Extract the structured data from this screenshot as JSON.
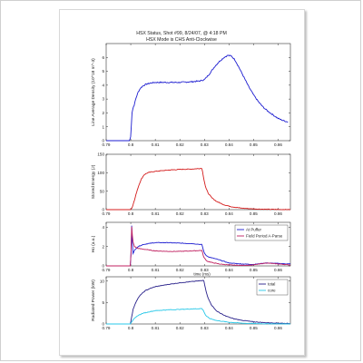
{
  "figure": {
    "title_line1": "HSX Status, Shot #99, 8/24/07, @ 4:18 PM",
    "title_line2": "HSX Mode is CHS Anti-Clockwise"
  },
  "colors": {
    "density": "#1c1cd0",
    "energy": "#d41c1c",
    "puffer": "#1c1cd0",
    "field": "#c02060",
    "total": "#28208a",
    "core": "#28c8e8"
  },
  "chart_data": [
    {
      "type": "line",
      "title": "",
      "xlabel": "",
      "ylabel": "Line Average Density (10^18 m^-3)",
      "xlim": [
        0.79,
        0.865
      ],
      "ylim": [
        0,
        7
      ],
      "x_ticks": [
        "0.79",
        "0.8",
        "0.81",
        "0.82",
        "0.83",
        "0.84",
        "0.85",
        "0.86"
      ],
      "y_ticks": [
        "0",
        "1",
        "2",
        "3",
        "4",
        "5",
        "6"
      ],
      "series": [
        {
          "color_key": "density",
          "x": [
            0.79,
            0.7995,
            0.8,
            0.8005,
            0.801,
            0.8015,
            0.802,
            0.803,
            0.804,
            0.805,
            0.806,
            0.807,
            0.808,
            0.81,
            0.815,
            0.82,
            0.825,
            0.828,
            0.83,
            0.832,
            0.834,
            0.836,
            0.838,
            0.8395,
            0.841,
            0.8425,
            0.844,
            0.846,
            0.848,
            0.85,
            0.852,
            0.854,
            0.856,
            0.858,
            0.86,
            0.862,
            0.864
          ],
          "y": [
            0,
            0,
            0.3,
            2.0,
            2.4,
            2.6,
            3.0,
            3.5,
            3.8,
            3.95,
            4.05,
            4.1,
            4.15,
            4.2,
            4.2,
            4.2,
            4.25,
            4.3,
            4.4,
            4.8,
            5.3,
            5.7,
            6.0,
            6.15,
            6.1,
            5.8,
            5.3,
            4.6,
            3.9,
            3.3,
            2.8,
            2.4,
            2.1,
            1.85,
            1.6,
            1.45,
            1.35
          ]
        }
      ]
    },
    {
      "type": "line",
      "title": "",
      "xlabel": "",
      "ylabel": "Stored Energy (J)",
      "xlim": [
        0.79,
        0.865
      ],
      "ylim": [
        0,
        150
      ],
      "x_ticks": [
        "0.79",
        "0.8",
        "0.81",
        "0.82",
        "0.83",
        "0.84",
        "0.85",
        "0.86"
      ],
      "y_ticks": [
        "0",
        "50",
        "100",
        "150"
      ],
      "series": [
        {
          "color_key": "energy",
          "x": [
            0.79,
            0.8,
            0.8005,
            0.8015,
            0.8025,
            0.8035,
            0.8045,
            0.8055,
            0.807,
            0.809,
            0.812,
            0.815,
            0.82,
            0.825,
            0.829,
            0.8297,
            0.8305,
            0.8315,
            0.833,
            0.835,
            0.838,
            0.841,
            0.845,
            0.85,
            0.855,
            0.86,
            0.865
          ],
          "y": [
            0,
            0,
            5,
            25,
            50,
            70,
            85,
            95,
            100,
            103,
            105,
            107,
            109,
            110,
            112,
            85,
            60,
            45,
            32,
            22,
            13,
            8,
            4,
            2,
            1,
            0.5,
            0
          ]
        }
      ]
    },
    {
      "type": "line",
      "title": "",
      "xlabel": "",
      "ylabel": "Hα (a.u.)",
      "xlim": [
        0.79,
        0.865
      ],
      "ylim": [
        0,
        4.5
      ],
      "x_ticks": [
        "0.79",
        "0.8",
        "0.81",
        "0.82",
        "0.83",
        "0.84",
        "0.85",
        "0.86"
      ],
      "y_ticks": [
        "0",
        "2",
        "4"
      ],
      "legend_position": "top-right",
      "series": [
        {
          "name": "At Puffer",
          "color_key": "puffer",
          "x": [
            0.79,
            0.7998,
            0.8,
            0.8004,
            0.8008,
            0.8015,
            0.803,
            0.805,
            0.807,
            0.81,
            0.815,
            0.82,
            0.825,
            0.829,
            0.8297,
            0.8305,
            0.832,
            0.835,
            0.84,
            0.845,
            0.85,
            0.855,
            0.86,
            0.865
          ],
          "y": [
            0,
            0,
            0.2,
            4.3,
            1.2,
            1.6,
            2.0,
            2.2,
            2.3,
            2.4,
            2.4,
            2.35,
            2.3,
            2.2,
            1.5,
            1.1,
            0.9,
            0.7,
            0.3,
            0.2,
            0.15,
            0.3,
            0.25,
            0.2
          ]
        },
        {
          "name": "Field Period A-Parse",
          "color_key": "field",
          "x": [
            0.79,
            0.7998,
            0.8,
            0.8004,
            0.8008,
            0.8015,
            0.803,
            0.806,
            0.81,
            0.815,
            0.82,
            0.825,
            0.829,
            0.8297,
            0.831,
            0.833,
            0.836,
            0.84,
            0.845,
            0.85,
            0.855,
            0.86,
            0.865
          ],
          "y": [
            0,
            0,
            0.3,
            4.2,
            2.6,
            2.0,
            1.8,
            1.7,
            1.55,
            1.5,
            1.5,
            1.55,
            1.6,
            0.9,
            0.5,
            0.35,
            0.2,
            0.1,
            0.05,
            0.1,
            0.3,
            0.2,
            0.1
          ]
        }
      ]
    },
    {
      "type": "line",
      "title": "",
      "xlabel": "",
      "ylabel": "Radiated Power (kW)",
      "xlim": [
        0.79,
        0.865
      ],
      "ylim": [
        0,
        11
      ],
      "x_ticks": [
        "0.79",
        "0.8",
        "0.81",
        "0.82",
        "0.83",
        "0.84",
        "0.85",
        "0.86"
      ],
      "y_ticks": [
        "0",
        "5",
        "10"
      ],
      "legend_position": "top-right",
      "annotation": "time (ms)",
      "series": [
        {
          "name": "total",
          "color_key": "total",
          "x": [
            0.79,
            0.7998,
            0.8,
            0.801,
            0.802,
            0.803,
            0.804,
            0.806,
            0.808,
            0.81,
            0.815,
            0.82,
            0.825,
            0.829,
            0.8297,
            0.8305,
            0.8315,
            0.833,
            0.835,
            0.838,
            0.842,
            0.846,
            0.85,
            0.855,
            0.86,
            0.865
          ],
          "y": [
            0,
            0,
            0.5,
            3.5,
            5.0,
            6.0,
            6.8,
            7.8,
            8.3,
            8.7,
            9.2,
            9.6,
            9.9,
            10.1,
            10.3,
            8.0,
            6.0,
            4.3,
            3.0,
            2.0,
            1.2,
            0.8,
            0.5,
            0.3,
            0.2,
            0.1
          ]
        },
        {
          "name": "core",
          "color_key": "core",
          "x": [
            0.79,
            0.7998,
            0.8,
            0.801,
            0.803,
            0.805,
            0.808,
            0.81,
            0.815,
            0.82,
            0.825,
            0.829,
            0.8297,
            0.8305,
            0.832,
            0.835,
            0.84,
            0.845,
            0.85,
            0.855,
            0.86,
            0.865
          ],
          "y": [
            0,
            0,
            0.2,
            1.0,
            2.0,
            2.5,
            2.9,
            3.1,
            3.3,
            3.4,
            3.5,
            3.6,
            3.0,
            2.0,
            1.3,
            0.8,
            0.4,
            0.2,
            0.1,
            0.05,
            0.02,
            0
          ]
        }
      ]
    }
  ]
}
